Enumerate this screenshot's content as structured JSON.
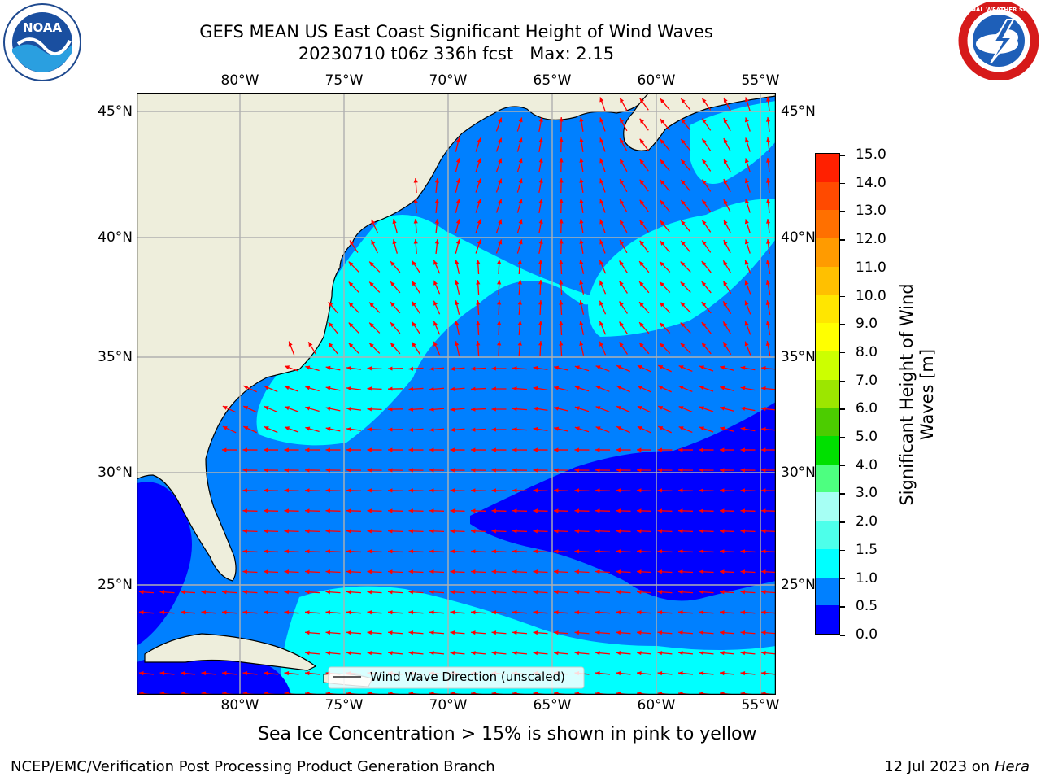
{
  "header": {
    "title_line1": "GEFS MEAN US East Coast Significant Height of Wind Waves",
    "title_line2": "20230710 t06z 336h fcst   Max: 2.15"
  },
  "logos": {
    "left": {
      "icon": "noaa-logo-icon",
      "text": "NOAA"
    },
    "right": {
      "icon": "nws-logo-icon",
      "text": "NATIONAL WEATHER SERVICE"
    }
  },
  "map": {
    "lon_labels": [
      "80°W",
      "75°W",
      "70°W",
      "65°W",
      "60°W",
      "55°W"
    ],
    "lat_labels": [
      "45°N",
      "40°N",
      "35°N",
      "30°N",
      "25°N"
    ],
    "legend_label": "Wind Wave Direction (unscaled)",
    "arrow_color": "#ff0000",
    "land_color": "#eeeedc",
    "grid_color": "#b0b0b0"
  },
  "colorbar": {
    "title": "Significant Height of Wind Waves [m]",
    "tick_labels": [
      "0.0",
      "0.5",
      "1.0",
      "1.5",
      "2.0",
      "3.0",
      "4.0",
      "5.0",
      "6.0",
      "7.0",
      "8.0",
      "9.0",
      "10.0",
      "11.0",
      "12.0",
      "13.0",
      "14.0",
      "15.0"
    ],
    "colors": [
      "#0000ff",
      "#0080ff",
      "#00ffff",
      "#4dffea",
      "#a6fff4",
      "#4dff80",
      "#00e000",
      "#4ccc00",
      "#9ce600",
      "#ccff00",
      "#ffff00",
      "#ffe600",
      "#ffc000",
      "#ff9b00",
      "#ff7000",
      "#ff4a00",
      "#ff2000"
    ]
  },
  "note": "Sea Ice Concentration > 15% is shown in pink to yellow",
  "footer": {
    "left": "NCEP/EMC/Verification Post Processing Product Generation Branch",
    "right_prefix": "12 Jul 2023 on ",
    "right_host": "Hera"
  }
}
